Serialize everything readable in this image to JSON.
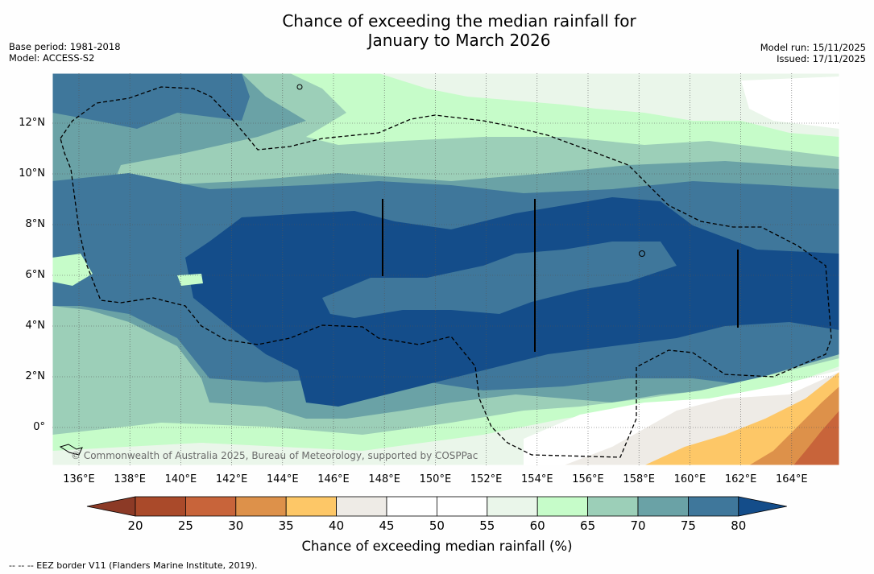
{
  "title": {
    "line1": "Chance of exceeding the median rainfall for",
    "line2": "January to March 2026"
  },
  "meta_left": {
    "base_period": "Base period: 1981-2018",
    "model": "Model: ACCESS-S2"
  },
  "meta_right": {
    "model_run": "Model run: 15/11/2025",
    "issued": "Issued: 17/11/2025"
  },
  "lat_labels": [
    "12°N",
    "10°N",
    "8°N",
    "6°N",
    "4°N",
    "2°N",
    "0°"
  ],
  "lon_labels": [
    "136°E",
    "138°E",
    "140°E",
    "142°E",
    "144°E",
    "146°E",
    "148°E",
    "150°E",
    "152°E",
    "154°E",
    "156°E",
    "158°E",
    "160°E",
    "162°E",
    "164°E"
  ],
  "copyright": "© Commonwealth of Australia 2025, Bureau of Meteorology, supported by COSPPac",
  "colorbar": {
    "ticks": [
      "20",
      "25",
      "30",
      "35",
      "40",
      "45",
      "50",
      "55",
      "60",
      "65",
      "70",
      "75",
      "80"
    ],
    "colors": {
      "under": "#8c3a26",
      "b20_25": "#aa4a2a",
      "b25_30": "#c8643a",
      "b30_35": "#dd914a",
      "b35_40": "#fdc767",
      "b40_45": "#eeebe6",
      "b45_50": "#ffffff",
      "b50_55": "#ffffff",
      "b55_60": "#eaf6ea",
      "b60_65": "#c6fcc9",
      "b65_70": "#9ccfb8",
      "b70_75": "#6aa2a6",
      "b75_80": "#3f779b",
      "over": "#144d8a"
    },
    "title": "Chance of exceeding median rainfall (%)"
  },
  "footer": "--  --  -- EEZ border V11 (Flanders Marine Institute, 2019)."
}
